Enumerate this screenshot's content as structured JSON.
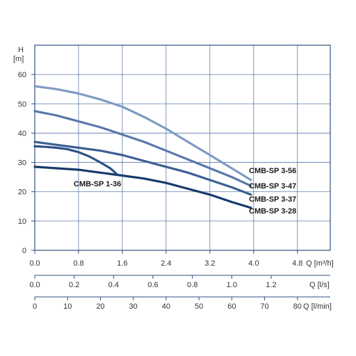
{
  "chart_data": {
    "type": "line",
    "grid": true,
    "ylabel": {
      "symbol": "H",
      "unit": "[m]"
    },
    "ylim": [
      0,
      70
    ],
    "yticks": [
      "0",
      "10",
      "20",
      "30",
      "40",
      "50",
      "60"
    ],
    "xlim": [
      0,
      5.4
    ],
    "x_axes": [
      {
        "label": "Q [m³/h]",
        "range": [
          0,
          5.4
        ],
        "ticks": [
          {
            "value": 0.0,
            "label": "0.0"
          },
          {
            "value": 0.8,
            "label": "0.8"
          },
          {
            "value": 1.6,
            "label": "1.6"
          },
          {
            "value": 2.4,
            "label": "2.4"
          },
          {
            "value": 3.2,
            "label": "3.2"
          },
          {
            "value": 4.0,
            "label": "4.0"
          },
          {
            "value": 4.8,
            "label": "4.8"
          }
        ]
      },
      {
        "label": "Q [l/s]",
        "range": [
          0,
          1.5
        ],
        "ticks": [
          {
            "value": 0.0,
            "label": "0.0"
          },
          {
            "value": 0.2,
            "label": "0.2"
          },
          {
            "value": 0.4,
            "label": "0.4"
          },
          {
            "value": 0.6,
            "label": "0.6"
          },
          {
            "value": 0.8,
            "label": "0.8"
          },
          {
            "value": 1.0,
            "label": "1.0"
          },
          {
            "value": 1.2,
            "label": "1.2"
          }
        ]
      },
      {
        "label": "Q [l/min]",
        "range": [
          0,
          90
        ],
        "ticks": [
          {
            "value": 0,
            "label": "0"
          },
          {
            "value": 10,
            "label": "10"
          },
          {
            "value": 20,
            "label": "20"
          },
          {
            "value": 30,
            "label": "30"
          },
          {
            "value": 40,
            "label": "40"
          },
          {
            "value": 50,
            "label": "50"
          },
          {
            "value": 60,
            "label": "60"
          },
          {
            "value": 70,
            "label": "70"
          },
          {
            "value": 80,
            "label": "80"
          }
        ]
      }
    ],
    "series": [
      {
        "name": "CMB-SP 3-56",
        "color": "#7f9bc4",
        "x": [
          0.0,
          0.4,
          0.8,
          1.2,
          1.6,
          2.0,
          2.4,
          2.8,
          3.2,
          3.6,
          3.95
        ],
        "y": [
          56,
          55,
          53.5,
          51.5,
          49,
          45.5,
          41.5,
          37,
          32.5,
          28,
          24
        ]
      },
      {
        "name": "CMB-SP 3-47",
        "color": "#5878ab",
        "x": [
          0.0,
          0.4,
          0.8,
          1.2,
          1.6,
          2.0,
          2.4,
          2.8,
          3.2,
          3.6,
          3.95
        ],
        "y": [
          47.5,
          46,
          44,
          42,
          39.5,
          37,
          34,
          31,
          28,
          25,
          22
        ]
      },
      {
        "name": "CMB-SP 3-37",
        "color": "#3b5f93",
        "x": [
          0.0,
          0.4,
          0.8,
          1.2,
          1.6,
          2.0,
          2.4,
          2.8,
          3.2,
          3.6,
          3.95
        ],
        "y": [
          37,
          36,
          35,
          34,
          32.5,
          30.5,
          28.5,
          26.5,
          24,
          21.5,
          19
        ]
      },
      {
        "name": "CMB-SP 3-28",
        "color": "#173a6b",
        "x": [
          0.0,
          0.4,
          0.8,
          1.2,
          1.6,
          2.0,
          2.4,
          2.8,
          3.2,
          3.6,
          3.95
        ],
        "y": [
          28.5,
          28,
          27.5,
          26.5,
          25.5,
          24.5,
          23,
          21,
          19,
          16.5,
          14.5
        ]
      },
      {
        "name": "CMB-SP 1-36",
        "color": "#2b5185",
        "x": [
          0.0,
          0.2,
          0.4,
          0.6,
          0.8,
          1.0,
          1.2,
          1.38,
          1.5
        ],
        "y": [
          35.5,
          35.3,
          35,
          34.5,
          33.5,
          32,
          30,
          28,
          26
        ]
      }
    ],
    "annotations": [
      {
        "text": "CMB-SP 3-56",
        "series": "CMB-SP 3-56"
      },
      {
        "text": "CMB-SP 3-47",
        "series": "CMB-SP 3-47"
      },
      {
        "text": "CMB-SP 3-37",
        "series": "CMB-SP 3-37"
      },
      {
        "text": "CMB-SP 3-28",
        "series": "CMB-SP 3-28"
      },
      {
        "text": "CMB-SP 1-36",
        "series": "CMB-SP 1-36"
      }
    ]
  }
}
